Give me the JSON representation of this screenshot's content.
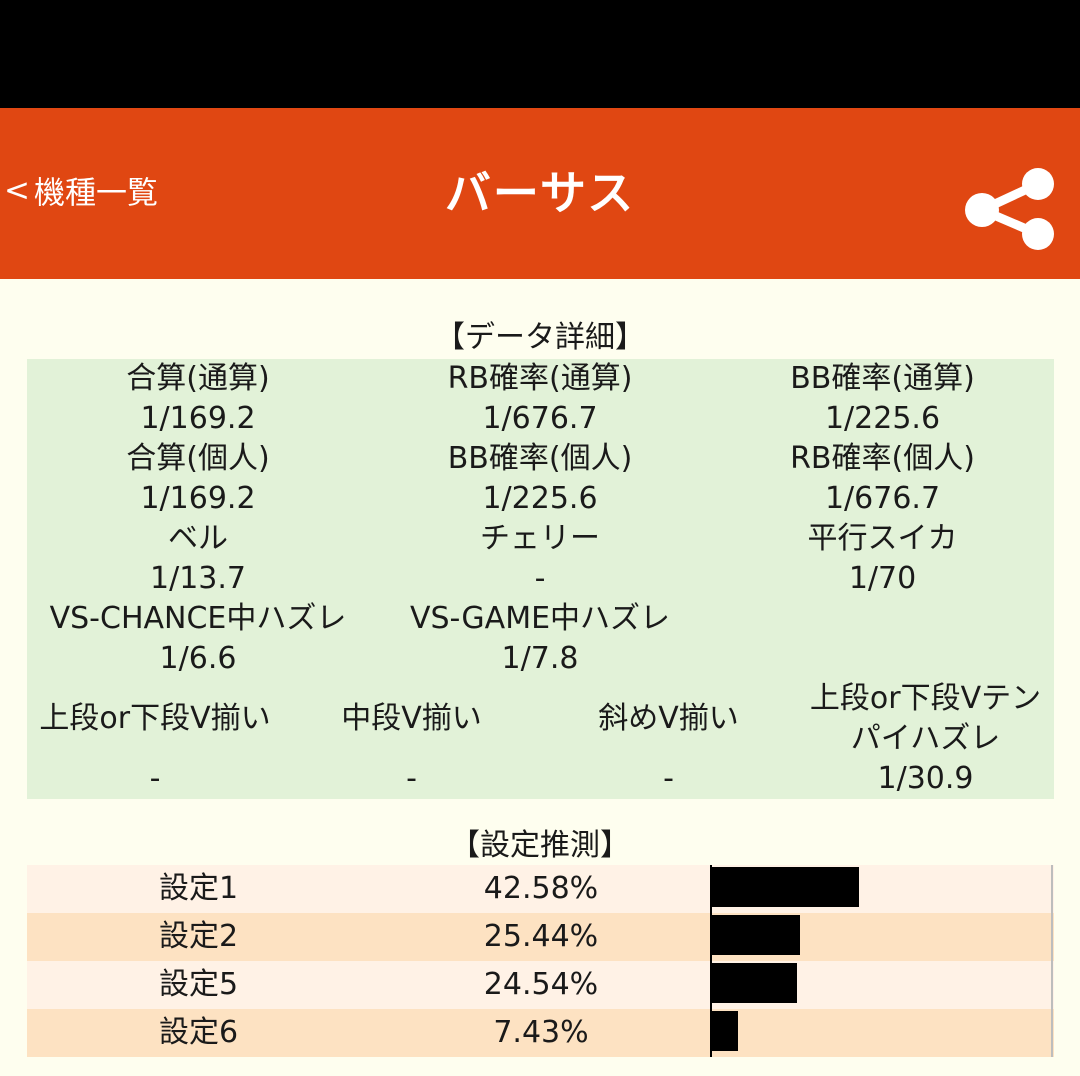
{
  "header": {
    "back_label": "機種一覧",
    "title": "バーサス",
    "share_icon": "share-icon",
    "bg_color": "#E04712"
  },
  "details": {
    "title": "【データ詳細】",
    "rows": [
      [
        {
          "label": "合算(通算)",
          "value": "1/169.2"
        },
        {
          "label": "RB確率(通算)",
          "value": "1/676.7"
        },
        {
          "label": "BB確率(通算)",
          "value": "1/225.6"
        }
      ],
      [
        {
          "label": "合算(個人)",
          "value": "1/169.2"
        },
        {
          "label": "BB確率(個人)",
          "value": "1/225.6"
        },
        {
          "label": "RB確率(個人)",
          "value": "1/676.7"
        }
      ],
      [
        {
          "label": "ベル",
          "value": "1/13.7"
        },
        {
          "label": "チェリー",
          "value": "-"
        },
        {
          "label": "平行スイカ",
          "value": "1/70"
        }
      ],
      [
        {
          "label": "VS-CHANCE中ハズレ",
          "value": "1/6.6"
        },
        {
          "label": "VS-GAME中ハズレ",
          "value": "1/7.8"
        }
      ]
    ],
    "row5": [
      {
        "label": "上段or下段V揃い",
        "value": "-"
      },
      {
        "label": "中段V揃い",
        "value": "-"
      },
      {
        "label": "斜めV揃い",
        "value": "-"
      },
      {
        "label_line1": "上段or下段Vテン",
        "label_line2": "パイハズレ",
        "value": "1/30.9"
      }
    ]
  },
  "estimate": {
    "title": "【設定推測】",
    "rows": [
      {
        "label": "設定1",
        "percent": "42.58%",
        "value": 42.58
      },
      {
        "label": "設定2",
        "percent": "25.44%",
        "value": 25.44
      },
      {
        "label": "設定5",
        "percent": "24.54%",
        "value": 24.54
      },
      {
        "label": "設定6",
        "percent": "7.43%",
        "value": 7.43
      }
    ]
  }
}
